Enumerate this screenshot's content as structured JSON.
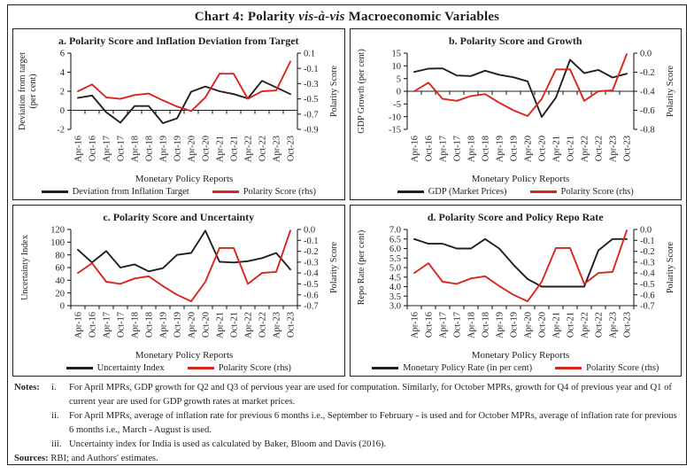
{
  "title": {
    "prefix": "Chart 4: Polarity ",
    "italic": "vis-à-vis",
    "suffix": " Macroeconomic Variables"
  },
  "colors": {
    "black_line": "#231f20",
    "red_line": "#d8251d",
    "axis": "#231f20",
    "text": "#231f20"
  },
  "chart_data": {
    "type": "line",
    "categories": [
      "Apr-16",
      "Oct-16",
      "Apr-17",
      "Oct-17",
      "Apr-18",
      "Oct-18",
      "Apr-19",
      "Oct-19",
      "Apr-20",
      "Oct-20",
      "Apr-21",
      "Oct-21",
      "Apr-22",
      "Oct-22",
      "Apr-23",
      "Oct-23"
    ],
    "xlabel": "Monetary Policy Reports",
    "legend_position": "bottom",
    "grid": false,
    "panels": [
      {
        "id": "a",
        "title": "a. Polarity Score and Inflation Deviation from Target",
        "left_axis": {
          "label_lines": [
            "Deviation from target",
            "(per cent)"
          ],
          "min": -2,
          "max": 6,
          "ticks": [
            "6",
            "4",
            "2",
            "0",
            "-2"
          ]
        },
        "right_axis": {
          "label": "Polarity Score",
          "min": -0.9,
          "max": 0.1,
          "ticks": [
            "0.1",
            "-0.1",
            "-0.3",
            "-0.5",
            "-0.7",
            "-0.9"
          ]
        },
        "series": [
          {
            "name": "Deviation from Inflation Target",
            "axis": "left",
            "color": "black",
            "values": [
              1.3,
              1.55,
              -0.2,
              -1.3,
              0.45,
              0.45,
              -1.35,
              -0.85,
              1.95,
              2.5,
              2.0,
              1.7,
              1.25,
              3.1,
              2.4,
              1.7
            ]
          },
          {
            "name": "Polarity Score (rhs)",
            "axis": "right",
            "color": "red",
            "values": [
              -0.4,
              -0.31,
              -0.48,
              -0.5,
              -0.45,
              -0.43,
              -0.52,
              -0.6,
              -0.66,
              -0.48,
              -0.17,
              -0.17,
              -0.5,
              -0.4,
              -0.39,
              -0.01
            ]
          }
        ]
      },
      {
        "id": "b",
        "title": "b. Polarity Score and Growth",
        "left_axis": {
          "label_lines": [
            "GDP Growth (per cent)"
          ],
          "min": -15,
          "max": 15,
          "ticks": [
            "15",
            "10",
            "5",
            "0",
            "-5",
            "-10",
            "-15"
          ]
        },
        "right_axis": {
          "label": "Polarity Score",
          "min": -0.8,
          "max": 0.0,
          "ticks": [
            "0.0",
            "-0.2",
            "-0.4",
            "-0.6",
            "-0.8"
          ]
        },
        "series": [
          {
            "name": "GDP (Market Prices)",
            "axis": "left",
            "color": "black",
            "values": [
              7.6,
              8.9,
              9.0,
              6.2,
              6.0,
              8.1,
              6.5,
              5.5,
              3.9,
              -10.1,
              -2.5,
              12.4,
              7.1,
              8.4,
              5.4,
              6.9
            ]
          },
          {
            "name": "Polarity Score (rhs)",
            "axis": "right",
            "color": "red",
            "values": [
              -0.4,
              -0.31,
              -0.48,
              -0.5,
              -0.45,
              -0.43,
              -0.52,
              -0.6,
              -0.66,
              -0.48,
              -0.17,
              -0.17,
              -0.5,
              -0.4,
              -0.39,
              -0.01
            ]
          }
        ]
      },
      {
        "id": "c",
        "title": "c. Polarity Score and Uncertainty",
        "left_axis": {
          "label_lines": [
            "Uncertainty Index"
          ],
          "min": 0,
          "max": 120,
          "ticks": [
            "120",
            "100",
            "80",
            "60",
            "40",
            "20",
            "0"
          ]
        },
        "right_axis": {
          "label": "Polarity Score",
          "min": -0.7,
          "max": 0.0,
          "ticks": [
            "0.0",
            "-0.1",
            "-0.2",
            "-0.3",
            "-0.4",
            "-0.5",
            "-0.6",
            "-0.7"
          ]
        },
        "series": [
          {
            "name": "Uncertainty Index",
            "axis": "left",
            "color": "black",
            "values": [
              88,
              68,
              86,
              60,
              65,
              54,
              59,
              80,
              83,
              118,
              69,
              68,
              70,
              75,
              83,
              57
            ]
          },
          {
            "name": "Polarity Score (rhs)",
            "axis": "right",
            "color": "red",
            "values": [
              -0.4,
              -0.31,
              -0.48,
              -0.5,
              -0.45,
              -0.43,
              -0.52,
              -0.6,
              -0.66,
              -0.48,
              -0.17,
              -0.17,
              -0.5,
              -0.4,
              -0.39,
              -0.01
            ]
          }
        ]
      },
      {
        "id": "d",
        "title": "d. Polarity Score and Policy Repo Rate",
        "left_axis": {
          "label_lines": [
            "Repo Rate (per cent)"
          ],
          "min": 3.0,
          "max": 7.0,
          "ticks": [
            "7.0",
            "6.5",
            "6.0",
            "5.5",
            "5.0",
            "4.5",
            "4.0",
            "3.5",
            "3.0"
          ]
        },
        "right_axis": {
          "label": "Polarity Score",
          "min": -0.7,
          "max": 0.0,
          "ticks": [
            "0.0",
            "-0.1",
            "-0.2",
            "-0.3",
            "-0.4",
            "-0.5",
            "-0.6",
            "-0.7"
          ]
        },
        "series": [
          {
            "name": "Monetary Policy Rate (in per cent)",
            "axis": "left",
            "color": "black",
            "values": [
              6.5,
              6.25,
              6.25,
              6.0,
              6.0,
              6.5,
              6.0,
              5.15,
              4.4,
              4.0,
              4.0,
              4.0,
              4.0,
              5.9,
              6.5,
              6.5
            ]
          },
          {
            "name": "Polarity Score (rhs)",
            "axis": "right",
            "color": "red",
            "values": [
              -0.4,
              -0.31,
              -0.48,
              -0.5,
              -0.45,
              -0.43,
              -0.52,
              -0.6,
              -0.66,
              -0.48,
              -0.17,
              -0.17,
              -0.5,
              -0.4,
              -0.39,
              -0.01
            ]
          }
        ]
      }
    ]
  },
  "notes": {
    "heading": "Notes:",
    "items": [
      {
        "label": "i.",
        "text": "For April MPRs, GDP growth for Q2 and Q3 of pervious year are used for computation. Similarly, for October MPRs, growth for Q4 of previous year and Q1 of current year are used for GDP growth rates at market prices."
      },
      {
        "label": "ii.",
        "text": "For April MPRs, average of inflation rate for previous 6 months i.e., September to February - is used and for October MPRs, average of inflation rate for previous 6 months i.e., March - August is used."
      },
      {
        "label": "iii.",
        "text": "Uncertainty index for India is used as calculated by Baker, Bloom and Davis (2016)."
      }
    ],
    "sources_heading": "Sources:",
    "sources_text": "RBI; and Authors' estimates."
  }
}
